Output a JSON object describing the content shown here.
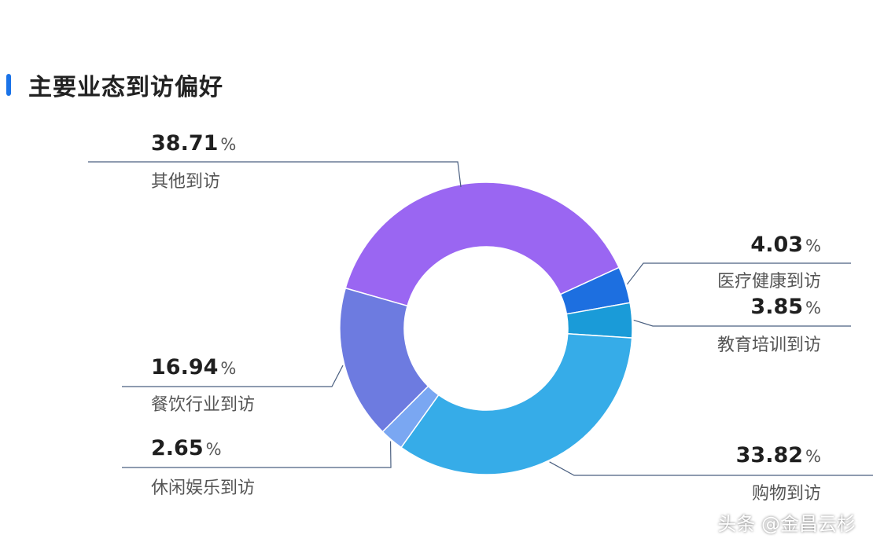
{
  "page": {
    "title": "主要业态到访偏好",
    "watermark": "头条 @金昌云杉"
  },
  "colors": {
    "accent": "#1a73e8",
    "leader_line": "#4a5f80"
  },
  "chart_data": {
    "type": "pie",
    "style": "donut",
    "title": "主要业态到访偏好",
    "unit": "%",
    "slices": [
      {
        "label": "其他到访",
        "value": 38.71,
        "value_text": "38.71",
        "color": "#9a66f2"
      },
      {
        "label": "医疗健康到访",
        "value": 4.03,
        "value_text": "4.03",
        "color": "#1d6fe0"
      },
      {
        "label": "教育培训到访",
        "value": 3.85,
        "value_text": "3.85",
        "color": "#1a9bd8"
      },
      {
        "label": "购物到访",
        "value": 33.82,
        "value_text": "33.82",
        "color": "#36ace8"
      },
      {
        "label": "休闲娱乐到访",
        "value": 2.65,
        "value_text": "2.65",
        "color": "#7aa7f2"
      },
      {
        "label": "餐饮行业到访",
        "value": 16.94,
        "value_text": "16.94",
        "color": "#6d7be0"
      }
    ]
  }
}
